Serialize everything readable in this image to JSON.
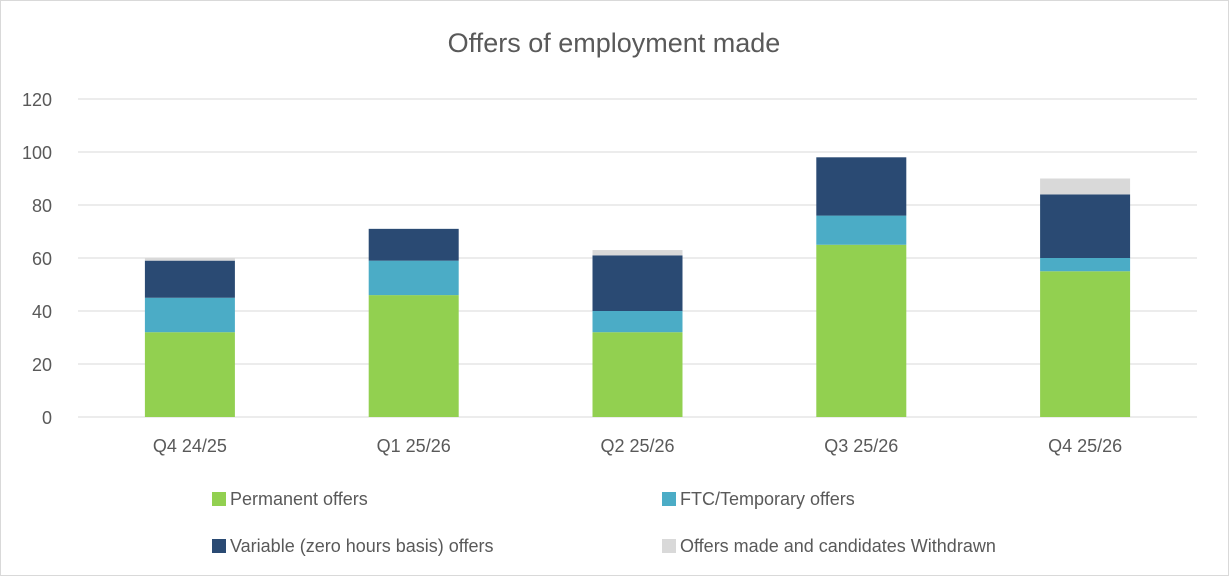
{
  "chart_data": {
    "type": "stacked_bar",
    "title": "Offers of employment made",
    "categories": [
      "Q4 24/25",
      "Q1 25/26",
      "Q2 25/26",
      "Q3 25/26",
      "Q4 25/26"
    ],
    "series": [
      {
        "name": "Permanent offers",
        "color": "#92d050",
        "values": [
          32,
          46,
          32,
          65,
          55
        ]
      },
      {
        "name": "FTC/Temporary offers",
        "color": "#4bacc6",
        "values": [
          13,
          13,
          8,
          11,
          5
        ]
      },
      {
        "name": "Variable (zero hours basis) offers",
        "color": "#2a4a73",
        "values": [
          14,
          12,
          21,
          22,
          24
        ]
      },
      {
        "name": "Offers made and candidates Withdrawn",
        "color": "#d9d9d9",
        "values": [
          1,
          0,
          2,
          0,
          6
        ]
      }
    ],
    "ylim": [
      0,
      120
    ],
    "yticks": [
      0,
      20,
      40,
      60,
      80,
      100,
      120
    ],
    "grid": true,
    "legend": "bottom"
  }
}
